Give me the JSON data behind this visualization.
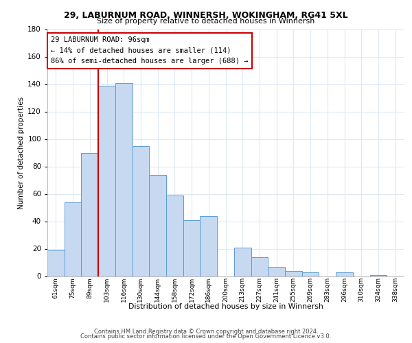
{
  "title1": "29, LABURNUM ROAD, WINNERSH, WOKINGHAM, RG41 5XL",
  "title2": "Size of property relative to detached houses in Winnersh",
  "xlabel": "Distribution of detached houses by size in Winnersh",
  "ylabel": "Number of detached properties",
  "bar_labels": [
    "61sqm",
    "75sqm",
    "89sqm",
    "103sqm",
    "116sqm",
    "130sqm",
    "144sqm",
    "158sqm",
    "172sqm",
    "186sqm",
    "200sqm",
    "213sqm",
    "227sqm",
    "241sqm",
    "255sqm",
    "269sqm",
    "283sqm",
    "296sqm",
    "310sqm",
    "324sqm",
    "338sqm"
  ],
  "bar_values": [
    19,
    54,
    90,
    139,
    141,
    95,
    74,
    59,
    41,
    44,
    0,
    21,
    14,
    7,
    4,
    3,
    0,
    3,
    0,
    1,
    0
  ],
  "bar_color": "#c6d9f1",
  "bar_edge_color": "#5b9bd5",
  "ylim": [
    0,
    180
  ],
  "yticks": [
    0,
    20,
    40,
    60,
    80,
    100,
    120,
    140,
    160,
    180
  ],
  "vline_color": "#cc0000",
  "annotation_title": "29 LABURNUM ROAD: 96sqm",
  "annotation_line1": "← 14% of detached houses are smaller (114)",
  "annotation_line2": "86% of semi-detached houses are larger (688) →",
  "annotation_box_color": "#ffffff",
  "annotation_box_edge": "#cc0000",
  "footer1": "Contains HM Land Registry data © Crown copyright and database right 2024.",
  "footer2": "Contains public sector information licensed under the Open Government Licence v3.0.",
  "bg_color": "#ffffff",
  "grid_color": "#dce9f5"
}
